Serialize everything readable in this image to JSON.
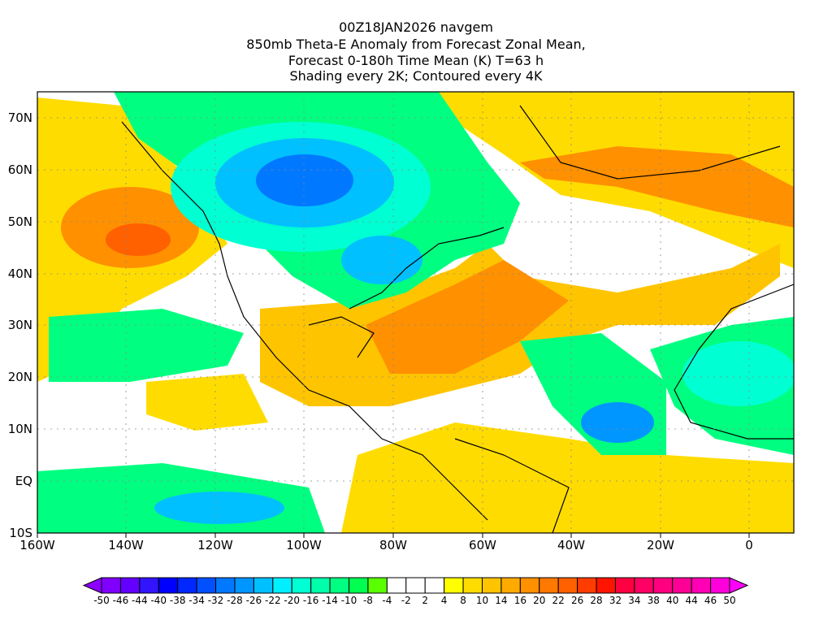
{
  "title": {
    "line1": "00Z18JAN2026 navgem",
    "line2": "850mb Theta-E Anomaly from Forecast Zonal Mean,",
    "line3": "Forecast 0-180h Time Mean (K) T=63 h",
    "line4": "Shading every 2K; Contoured every 4K"
  },
  "axes": {
    "lon_labels": [
      "160W",
      "140W",
      "120W",
      "100W",
      "80W",
      "60W",
      "40W",
      "20W",
      "0"
    ],
    "lat_labels": [
      "70N",
      "60N",
      "50N",
      "40N",
      "30N",
      "20N",
      "10N",
      "EQ",
      "10S"
    ],
    "lon_range": [
      -160,
      10
    ],
    "lat_range": [
      -10,
      75
    ]
  },
  "colorbar": {
    "labels": [
      "-50",
      "-46",
      "-44",
      "-40",
      "-38",
      "-34",
      "-32",
      "-28",
      "-26",
      "-22",
      "-20",
      "-16",
      "-14",
      "-10",
      "-8",
      "-4",
      "-2",
      "2",
      "4",
      "8",
      "10",
      "14",
      "16",
      "20",
      "22",
      "26",
      "28",
      "32",
      "34",
      "38",
      "40",
      "44",
      "46",
      "50"
    ],
    "colors": [
      "#8000ff",
      "#6400ff",
      "#3214ff",
      "#0000ff",
      "#0028ff",
      "#0050ff",
      "#0078ff",
      "#0096ff",
      "#00c0ff",
      "#00f0ff",
      "#00ffd2",
      "#00ffaa",
      "#00ff80",
      "#00ff50",
      "#5aff00",
      "#ffffff",
      "#ffffff",
      "#ffffff",
      "#ffff00",
      "#ffdc00",
      "#ffc400",
      "#ffaa00",
      "#ff9000",
      "#ff7800",
      "#ff6000",
      "#ff3c00",
      "#ff1400",
      "#ff0040",
      "#ff0064",
      "#ff0080",
      "#ff0096",
      "#ff00b4",
      "#ff00dc"
    ],
    "low_color": "#8c00ff",
    "high_color": "#ff00ff"
  }
}
